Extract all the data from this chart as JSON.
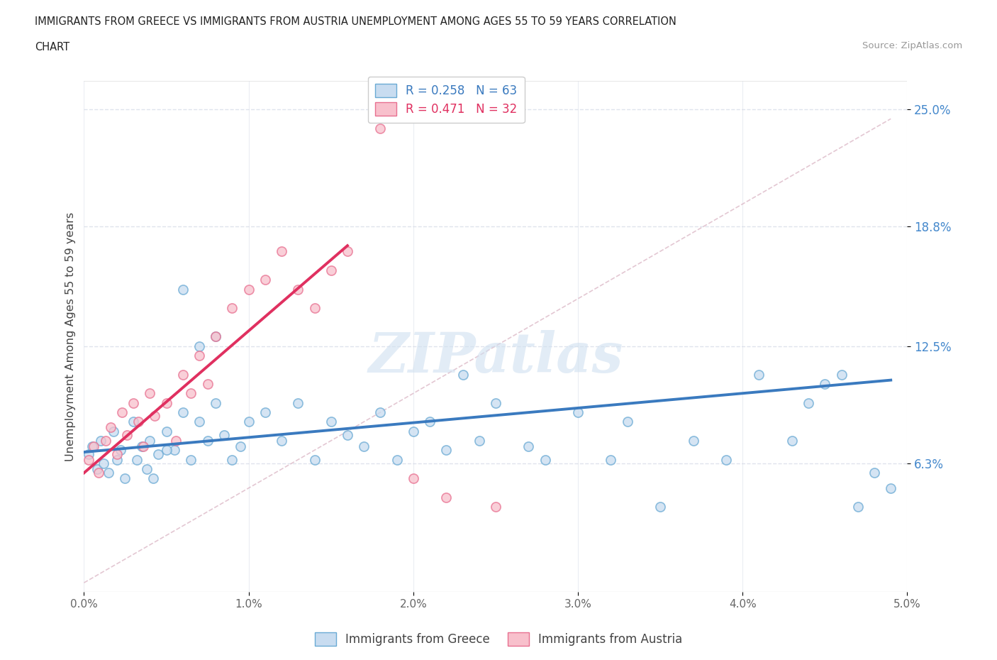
{
  "title_line1": "IMMIGRANTS FROM GREECE VS IMMIGRANTS FROM AUSTRIA UNEMPLOYMENT AMONG AGES 55 TO 59 YEARS CORRELATION",
  "title_line2": "CHART",
  "source_text": "Source: ZipAtlas.com",
  "ylabel": "Unemployment Among Ages 55 to 59 years",
  "xlim": [
    0.0,
    0.05
  ],
  "ylim": [
    -0.005,
    0.265
  ],
  "yticks": [
    0.063,
    0.125,
    0.188,
    0.25
  ],
  "ytick_labels": [
    "6.3%",
    "12.5%",
    "18.8%",
    "25.0%"
  ],
  "xticks": [
    0.0,
    0.01,
    0.02,
    0.03,
    0.04,
    0.05
  ],
  "xtick_labels": [
    "0.0%",
    "1.0%",
    "2.0%",
    "3.0%",
    "4.0%",
    "5.0%"
  ],
  "watermark": "ZIPatlas",
  "legend_label1": "R = 0.258   N = 63",
  "legend_label2": "R = 0.471   N = 32",
  "blue_face": "#c8dcf0",
  "blue_edge": "#6aaad4",
  "pink_face": "#f8c0cc",
  "pink_edge": "#e87090",
  "blue_line_color": "#3a7abf",
  "pink_line_color": "#e03060",
  "grid_color": "#d8dce8",
  "axis_label_color": "#4488cc",
  "greece_scatter_x": [
    0.0003,
    0.0005,
    0.0008,
    0.001,
    0.0012,
    0.0015,
    0.0018,
    0.002,
    0.0022,
    0.0025,
    0.003,
    0.0032,
    0.0035,
    0.0038,
    0.004,
    0.0042,
    0.0045,
    0.005,
    0.0055,
    0.006,
    0.0065,
    0.007,
    0.0075,
    0.008,
    0.0085,
    0.009,
    0.0095,
    0.01,
    0.011,
    0.012,
    0.013,
    0.014,
    0.015,
    0.016,
    0.017,
    0.018,
    0.019,
    0.02,
    0.021,
    0.022,
    0.023,
    0.024,
    0.025,
    0.027,
    0.028,
    0.03,
    0.032,
    0.033,
    0.035,
    0.037,
    0.039,
    0.041,
    0.043,
    0.044,
    0.045,
    0.046,
    0.047,
    0.048,
    0.049,
    0.005,
    0.006,
    0.007,
    0.008
  ],
  "greece_scatter_y": [
    0.068,
    0.072,
    0.06,
    0.075,
    0.063,
    0.058,
    0.08,
    0.065,
    0.07,
    0.055,
    0.085,
    0.065,
    0.072,
    0.06,
    0.075,
    0.055,
    0.068,
    0.08,
    0.07,
    0.09,
    0.065,
    0.085,
    0.075,
    0.095,
    0.078,
    0.065,
    0.072,
    0.085,
    0.09,
    0.075,
    0.095,
    0.065,
    0.085,
    0.078,
    0.072,
    0.09,
    0.065,
    0.08,
    0.085,
    0.07,
    0.11,
    0.075,
    0.095,
    0.072,
    0.065,
    0.09,
    0.065,
    0.085,
    0.04,
    0.075,
    0.065,
    0.11,
    0.075,
    0.095,
    0.105,
    0.11,
    0.04,
    0.058,
    0.05,
    0.07,
    0.155,
    0.125,
    0.13
  ],
  "austria_scatter_x": [
    0.0003,
    0.0006,
    0.0009,
    0.0013,
    0.0016,
    0.002,
    0.0023,
    0.0026,
    0.003,
    0.0033,
    0.0036,
    0.004,
    0.0043,
    0.005,
    0.0056,
    0.006,
    0.0065,
    0.007,
    0.0075,
    0.008,
    0.009,
    0.01,
    0.011,
    0.012,
    0.013,
    0.014,
    0.015,
    0.016,
    0.018,
    0.02,
    0.022,
    0.025
  ],
  "austria_scatter_y": [
    0.065,
    0.072,
    0.058,
    0.075,
    0.082,
    0.068,
    0.09,
    0.078,
    0.095,
    0.085,
    0.072,
    0.1,
    0.088,
    0.095,
    0.075,
    0.11,
    0.1,
    0.12,
    0.105,
    0.13,
    0.145,
    0.155,
    0.16,
    0.175,
    0.155,
    0.145,
    0.165,
    0.175,
    0.24,
    0.055,
    0.045,
    0.04
  ],
  "blue_trend_x": [
    0.0,
    0.049
  ],
  "blue_trend_y": [
    0.069,
    0.107
  ],
  "pink_trend_x": [
    0.0,
    0.016
  ],
  "pink_trend_y": [
    0.058,
    0.178
  ],
  "dashed_line_x": [
    0.0,
    0.049
  ],
  "dashed_line_y": [
    0.0,
    0.245
  ]
}
